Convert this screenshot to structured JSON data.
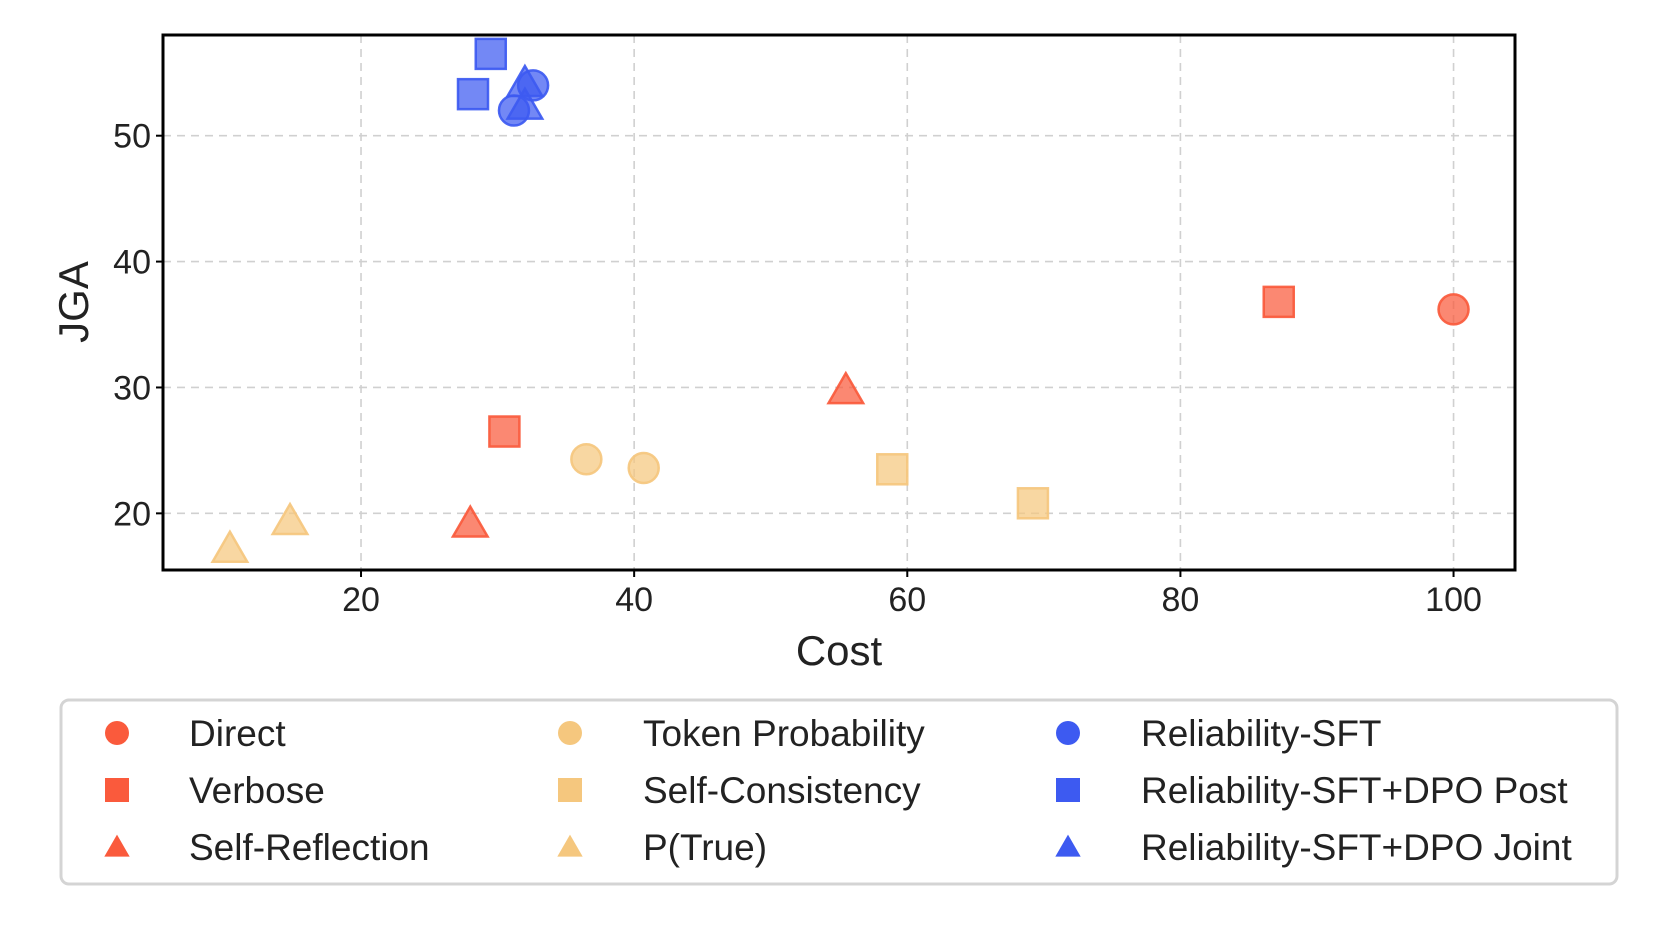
{
  "chart_data": {
    "type": "scatter",
    "title": "",
    "xlabel": "Cost",
    "ylabel": "JGA",
    "xlim": [
      5.5,
      104.5
    ],
    "ylim": [
      15.5,
      58
    ],
    "xticks": [
      20,
      40,
      60,
      80,
      100
    ],
    "yticks": [
      20,
      30,
      40,
      50
    ],
    "grid": true,
    "legend_position": "bottom",
    "series": [
      {
        "name": "Direct",
        "marker": "circle",
        "color": "#fa5a3c",
        "points": [
          [
            100,
            36.2
          ]
        ]
      },
      {
        "name": "Verbose",
        "marker": "square",
        "color": "#fa5a3c",
        "points": [
          [
            87.2,
            36.8
          ],
          [
            30.5,
            26.5
          ]
        ]
      },
      {
        "name": "Self-Reflection",
        "marker": "triangle",
        "color": "#fa5a3c",
        "points": [
          [
            55.5,
            29.8
          ],
          [
            28,
            19.2
          ]
        ]
      },
      {
        "name": "Token Probability",
        "marker": "circle",
        "color": "#f5c77e",
        "points": [
          [
            36.5,
            24.3
          ],
          [
            40.7,
            23.6
          ]
        ]
      },
      {
        "name": "Self-Consistency",
        "marker": "square",
        "color": "#f5c77e",
        "points": [
          [
            58.9,
            23.5
          ],
          [
            69.2,
            20.8
          ]
        ]
      },
      {
        "name": "P(True)",
        "marker": "triangle",
        "color": "#f5c77e",
        "points": [
          [
            10.4,
            17.2
          ],
          [
            14.8,
            19.4
          ]
        ]
      },
      {
        "name": "Reliability-SFT",
        "marker": "circle",
        "color": "#3d5af1",
        "points": [
          [
            32.6,
            54
          ],
          [
            31.2,
            52
          ]
        ]
      },
      {
        "name": "Reliability-SFT+DPO Post",
        "marker": "square",
        "color": "#3d5af1",
        "points": [
          [
            29.5,
            56.5
          ],
          [
            28.2,
            53.3
          ]
        ]
      },
      {
        "name": "Reliability-SFT+DPO Joint",
        "marker": "triangle",
        "color": "#3d5af1",
        "points": [
          [
            32,
            54.2
          ],
          [
            32,
            52.4
          ]
        ]
      }
    ]
  }
}
